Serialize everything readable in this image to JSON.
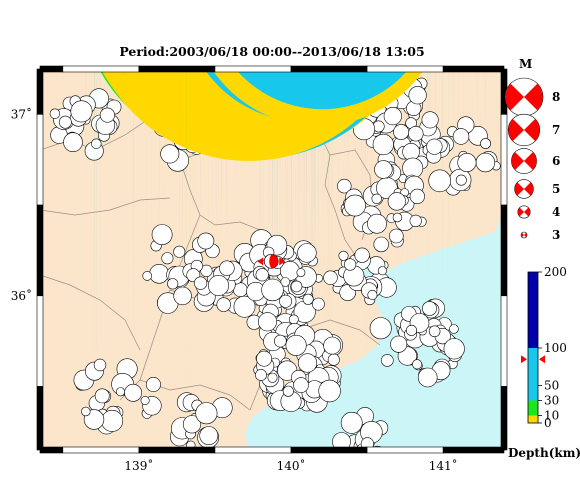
{
  "title": "Period:2003/06/18 00:00--2013/06/18 13:05",
  "map": {
    "lon_range": [
      138.35,
      141.4
    ],
    "lat_range": [
      35.15,
      37.25
    ],
    "lon_ticks": [
      {
        "value": 139,
        "label": "139˚"
      },
      {
        "value": 140,
        "label": "140˚"
      },
      {
        "value": 141,
        "label": "141˚"
      }
    ],
    "lat_ticks": [
      {
        "value": 37,
        "label": "37˚"
      },
      {
        "value": 36,
        "label": "36˚"
      }
    ],
    "colors": {
      "land": "#fbe5cb",
      "sea": "#ccf5f8",
      "boundary": "#9a8f86",
      "frame": "#000000"
    },
    "star_event": {
      "lon": 139.87,
      "lat": 36.19,
      "color": "#ff0000"
    },
    "regions": [
      {
        "cx": 138.65,
        "cy": 36.95,
        "n": 26,
        "r": 0.17,
        "palette": "shallow"
      },
      {
        "cx": 139.35,
        "cy": 36.9,
        "n": 22,
        "r": 0.17,
        "palette": "mixed"
      },
      {
        "cx": 140.75,
        "cy": 36.95,
        "n": 55,
        "r": 0.25,
        "palette": "shallow_mid"
      },
      {
        "cx": 141.15,
        "cy": 36.75,
        "n": 20,
        "r": 0.2,
        "palette": "mid"
      },
      {
        "cx": 140.6,
        "cy": 36.5,
        "n": 40,
        "r": 0.22,
        "palette": "mid"
      },
      {
        "cx": 139.85,
        "cy": 36.05,
        "n": 90,
        "r": 0.28,
        "palette": "deep"
      },
      {
        "cx": 139.3,
        "cy": 36.15,
        "n": 30,
        "r": 0.22,
        "palette": "deepest"
      },
      {
        "cx": 140.05,
        "cy": 35.6,
        "n": 70,
        "r": 0.22,
        "palette": "deep"
      },
      {
        "cx": 140.85,
        "cy": 35.75,
        "n": 45,
        "r": 0.22,
        "palette": "mid"
      },
      {
        "cx": 140.45,
        "cy": 36.1,
        "n": 28,
        "r": 0.15,
        "palette": "deep"
      },
      {
        "cx": 138.85,
        "cy": 35.45,
        "n": 22,
        "r": 0.2,
        "palette": "shallow_mid"
      },
      {
        "cx": 139.4,
        "cy": 35.3,
        "n": 14,
        "r": 0.15,
        "palette": "mixed"
      },
      {
        "cx": 140.5,
        "cy": 35.25,
        "n": 16,
        "r": 0.15,
        "palette": "mid"
      }
    ]
  },
  "magnitude_legend": {
    "title": "M",
    "items": [
      {
        "label": "8",
        "value": 8
      },
      {
        "label": "7",
        "value": 7
      },
      {
        "label": "6",
        "value": 6
      },
      {
        "label": "5",
        "value": 5
      },
      {
        "label": "4",
        "value": 4
      },
      {
        "label": "3",
        "value": 3
      }
    ],
    "color": "#ff0000"
  },
  "depth_scale": {
    "title": "Depth(km)",
    "min": 0,
    "max": 200,
    "ticks": [
      {
        "value": 200,
        "label": "200"
      },
      {
        "value": 100,
        "label": "100"
      },
      {
        "value": 50,
        "label": "50"
      },
      {
        "value": 30,
        "label": "30"
      },
      {
        "value": 10,
        "label": "10"
      },
      {
        "value": 0,
        "label": "0"
      }
    ],
    "segments": [
      {
        "from": 0,
        "to": 10,
        "color": "#ffd800"
      },
      {
        "from": 10,
        "to": 30,
        "color": "#1ee61e"
      },
      {
        "from": 30,
        "to": 100,
        "color": "#18c8ec"
      },
      {
        "from": 100,
        "to": 200,
        "color": "#0000aa"
      }
    ],
    "marker_value": 85,
    "marker_color": "#ff0000"
  }
}
